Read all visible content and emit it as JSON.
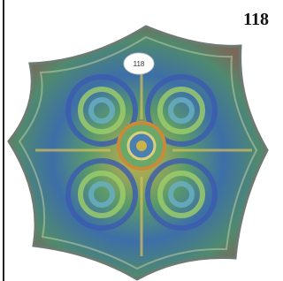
{
  "label": "118",
  "sticker": "118"
}
